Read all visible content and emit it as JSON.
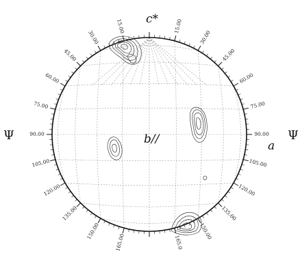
{
  "figure": {
    "labels": {
      "top": "c*",
      "center": "b//",
      "right": "a",
      "psi_left": "Ψ",
      "psi_right": "Ψ"
    },
    "ticks_left": [
      "15.00",
      "30.00",
      "45.00",
      "60.00",
      "75.00",
      "90.00",
      "105.00",
      "120.00",
      "135.00",
      "150.00",
      "165.00"
    ],
    "ticks_right": [
      "15.00",
      "30.00",
      "45.00",
      "60.00",
      "75.00",
      "90.00",
      "105.00",
      "120.00",
      "135.00",
      "150.00",
      "165.0"
    ],
    "grid": {
      "latitude_step_deg": 15,
      "longitude_step_deg": 15
    },
    "colors": {
      "contour": "#3a3a3a",
      "grid": "#9a9a9a",
      "rim": "#111111"
    }
  }
}
